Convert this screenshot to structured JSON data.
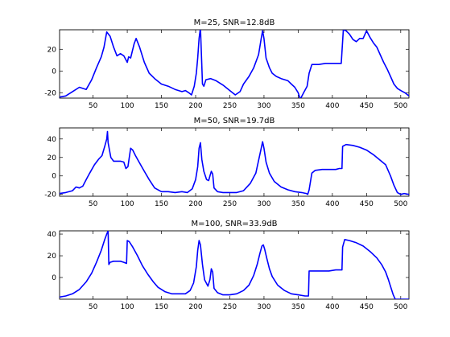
{
  "chart_data": [
    {
      "type": "line",
      "title": "M=25, SNR=12.8dB",
      "xlabel": "",
      "ylabel": "",
      "xlim": [
        1,
        512
      ],
      "ylim": [
        -25,
        38
      ],
      "xticks": [
        50,
        100,
        150,
        200,
        250,
        300,
        350,
        400,
        450,
        500
      ],
      "yticks": [
        -20,
        0,
        20
      ],
      "grid": false,
      "series": [
        {
          "color": "#0000ff",
          "points": [
            [
              1,
              -24
            ],
            [
              10,
              -23
            ],
            [
              20,
              -19
            ],
            [
              30,
              -15
            ],
            [
              40,
              -17
            ],
            [
              48,
              -8
            ],
            [
              55,
              3
            ],
            [
              62,
              13
            ],
            [
              66,
              22
            ],
            [
              70,
              36
            ],
            [
              75,
              32
            ],
            [
              80,
              22
            ],
            [
              85,
              14
            ],
            [
              90,
              16
            ],
            [
              95,
              14
            ],
            [
              100,
              8
            ],
            [
              102,
              13
            ],
            [
              105,
              12
            ],
            [
              110,
              25
            ],
            [
              113,
              30
            ],
            [
              118,
              22
            ],
            [
              125,
              8
            ],
            [
              132,
              -2
            ],
            [
              140,
              -7
            ],
            [
              150,
              -12
            ],
            [
              160,
              -14
            ],
            [
              170,
              -17
            ],
            [
              180,
              -19
            ],
            [
              185,
              -18
            ],
            [
              190,
              -20
            ],
            [
              194,
              -22
            ],
            [
              198,
              -14
            ],
            [
              201,
              -2
            ],
            [
              203,
              12
            ],
            [
              205,
              30
            ],
            [
              207,
              40
            ],
            [
              209,
              5
            ],
            [
              210,
              -12
            ],
            [
              212,
              -14
            ],
            [
              215,
              -8
            ],
            [
              222,
              -7
            ],
            [
              230,
              -9
            ],
            [
              240,
              -13
            ],
            [
              250,
              -18
            ],
            [
              258,
              -22
            ],
            [
              265,
              -19
            ],
            [
              270,
              -12
            ],
            [
              278,
              -5
            ],
            [
              285,
              3
            ],
            [
              292,
              15
            ],
            [
              296,
              30
            ],
            [
              298,
              37
            ],
            [
              300,
              30
            ],
            [
              303,
              12
            ],
            [
              308,
              3
            ],
            [
              312,
              -2
            ],
            [
              318,
              -5
            ],
            [
              325,
              -7
            ],
            [
              335,
              -9
            ],
            [
              340,
              -12
            ],
            [
              345,
              -15
            ],
            [
              350,
              -20
            ],
            [
              353,
              -26
            ],
            [
              358,
              -20
            ],
            [
              363,
              -14
            ],
            [
              366,
              -2
            ],
            [
              370,
              6
            ],
            [
              380,
              6
            ],
            [
              390,
              7
            ],
            [
              400,
              7
            ],
            [
              410,
              7
            ],
            [
              413,
              7
            ],
            [
              416,
              38
            ],
            [
              420,
              37
            ],
            [
              425,
              34
            ],
            [
              430,
              29
            ],
            [
              435,
              27
            ],
            [
              440,
              30
            ],
            [
              445,
              30
            ],
            [
              450,
              37
            ],
            [
              455,
              31
            ],
            [
              460,
              26
            ],
            [
              465,
              22
            ],
            [
              470,
              15
            ],
            [
              475,
              8
            ],
            [
              480,
              2
            ],
            [
              485,
              -5
            ],
            [
              490,
              -12
            ],
            [
              495,
              -16
            ],
            [
              500,
              -18
            ],
            [
              506,
              -20
            ],
            [
              512,
              -23
            ]
          ]
        }
      ]
    },
    {
      "type": "line",
      "title": "M=50, SNR=19.7dB",
      "xlabel": "",
      "ylabel": "",
      "xlim": [
        1,
        512
      ],
      "ylim": [
        -22,
        52
      ],
      "xticks": [
        50,
        100,
        150,
        200,
        250,
        300,
        350,
        400,
        450,
        500
      ],
      "yticks": [
        -20,
        0,
        20,
        40
      ],
      "grid": false,
      "series": [
        {
          "color": "#0000ff",
          "points": [
            [
              1,
              -19
            ],
            [
              10,
              -18
            ],
            [
              20,
              -16
            ],
            [
              25,
              -12
            ],
            [
              30,
              -13
            ],
            [
              35,
              -11
            ],
            [
              40,
              -4
            ],
            [
              45,
              3
            ],
            [
              52,
              12
            ],
            [
              58,
              18
            ],
            [
              63,
              22
            ],
            [
              67,
              32
            ],
            [
              70,
              40
            ],
            [
              71,
              48
            ],
            [
              72,
              36
            ],
            [
              74,
              28
            ],
            [
              76,
              20
            ],
            [
              80,
              16
            ],
            [
              85,
              16
            ],
            [
              90,
              16
            ],
            [
              95,
              15
            ],
            [
              98,
              8
            ],
            [
              101,
              10
            ],
            [
              103,
              20
            ],
            [
              105,
              30
            ],
            [
              108,
              28
            ],
            [
              112,
              22
            ],
            [
              118,
              14
            ],
            [
              125,
              5
            ],
            [
              132,
              -4
            ],
            [
              140,
              -13
            ],
            [
              150,
              -17
            ],
            [
              160,
              -17
            ],
            [
              170,
              -18
            ],
            [
              180,
              -17
            ],
            [
              188,
              -18
            ],
            [
              195,
              -14
            ],
            [
              200,
              -4
            ],
            [
              203,
              10
            ],
            [
              205,
              30
            ],
            [
              207,
              36
            ],
            [
              209,
              18
            ],
            [
              212,
              5
            ],
            [
              216,
              -4
            ],
            [
              219,
              -5
            ],
            [
              221,
              0
            ],
            [
              223,
              5
            ],
            [
              225,
              2
            ],
            [
              227,
              -13
            ],
            [
              232,
              -17
            ],
            [
              240,
              -18
            ],
            [
              250,
              -18
            ],
            [
              260,
              -18
            ],
            [
              270,
              -16
            ],
            [
              280,
              -8
            ],
            [
              288,
              3
            ],
            [
              293,
              20
            ],
            [
              296,
              30
            ],
            [
              298,
              37
            ],
            [
              300,
              30
            ],
            [
              303,
              15
            ],
            [
              308,
              3
            ],
            [
              315,
              -6
            ],
            [
              325,
              -12
            ],
            [
              335,
              -15
            ],
            [
              345,
              -17
            ],
            [
              355,
              -18
            ],
            [
              362,
              -19
            ],
            [
              364,
              -20
            ],
            [
              366,
              -15
            ],
            [
              370,
              3
            ],
            [
              375,
              6
            ],
            [
              385,
              7
            ],
            [
              395,
              7
            ],
            [
              405,
              7
            ],
            [
              410,
              8
            ],
            [
              414,
              8
            ],
            [
              415,
              32
            ],
            [
              420,
              34
            ],
            [
              430,
              33
            ],
            [
              440,
              31
            ],
            [
              450,
              28
            ],
            [
              460,
              23
            ],
            [
              470,
              17
            ],
            [
              478,
              12
            ],
            [
              485,
              0
            ],
            [
              490,
              -10
            ],
            [
              495,
              -18
            ],
            [
              500,
              -20
            ],
            [
              505,
              -19
            ],
            [
              512,
              -20
            ]
          ]
        }
      ]
    },
    {
      "type": "line",
      "title": "M=100, SNR=33.9dB",
      "xlabel": "",
      "ylabel": "",
      "xlim": [
        1,
        512
      ],
      "ylim": [
        -20,
        43
      ],
      "xticks": [
        50,
        100,
        150,
        200,
        250,
        300,
        350,
        400,
        450,
        500
      ],
      "yticks": [
        0,
        20,
        40
      ],
      "grid": false,
      "series": [
        {
          "color": "#0000ff",
          "points": [
            [
              1,
              -18
            ],
            [
              10,
              -17
            ],
            [
              20,
              -15
            ],
            [
              30,
              -11
            ],
            [
              40,
              -4
            ],
            [
              48,
              4
            ],
            [
              55,
              14
            ],
            [
              62,
              25
            ],
            [
              67,
              35
            ],
            [
              70,
              40
            ],
            [
              72,
              43
            ],
            [
              73,
              12
            ],
            [
              75,
              14
            ],
            [
              80,
              15
            ],
            [
              85,
              15
            ],
            [
              90,
              15
            ],
            [
              95,
              14
            ],
            [
              99,
              13
            ],
            [
              100,
              34
            ],
            [
              103,
              33
            ],
            [
              108,
              28
            ],
            [
              115,
              20
            ],
            [
              122,
              11
            ],
            [
              130,
              3
            ],
            [
              138,
              -4
            ],
            [
              145,
              -9
            ],
            [
              155,
              -13
            ],
            [
              165,
              -15
            ],
            [
              175,
              -15
            ],
            [
              185,
              -15
            ],
            [
              192,
              -12
            ],
            [
              197,
              -5
            ],
            [
              201,
              10
            ],
            [
              203,
              25
            ],
            [
              205,
              34
            ],
            [
              207,
              30
            ],
            [
              210,
              12
            ],
            [
              213,
              -2
            ],
            [
              218,
              -8
            ],
            [
              221,
              -2
            ],
            [
              223,
              8
            ],
            [
              225,
              5
            ],
            [
              227,
              -10
            ],
            [
              232,
              -14
            ],
            [
              240,
              -16
            ],
            [
              250,
              -16
            ],
            [
              260,
              -15
            ],
            [
              270,
              -12
            ],
            [
              278,
              -7
            ],
            [
              285,
              2
            ],
            [
              290,
              12
            ],
            [
              294,
              22
            ],
            [
              297,
              29
            ],
            [
              299,
              30
            ],
            [
              301,
              26
            ],
            [
              304,
              18
            ],
            [
              308,
              8
            ],
            [
              312,
              1
            ],
            [
              320,
              -7
            ],
            [
              330,
              -12
            ],
            [
              340,
              -15
            ],
            [
              350,
              -16
            ],
            [
              360,
              -17
            ],
            [
              365,
              -17
            ],
            [
              366,
              6
            ],
            [
              375,
              6
            ],
            [
              385,
              6
            ],
            [
              395,
              6
            ],
            [
              405,
              7
            ],
            [
              414,
              7
            ],
            [
              415,
              28
            ],
            [
              418,
              35
            ],
            [
              425,
              34
            ],
            [
              435,
              32
            ],
            [
              445,
              29
            ],
            [
              455,
              24
            ],
            [
              465,
              18
            ],
            [
              472,
              12
            ],
            [
              478,
              5
            ],
            [
              482,
              -2
            ],
            [
              486,
              -10
            ],
            [
              489,
              -16
            ],
            [
              492,
              -20
            ],
            [
              500,
              -20
            ],
            [
              512,
              -20
            ]
          ]
        }
      ]
    }
  ]
}
